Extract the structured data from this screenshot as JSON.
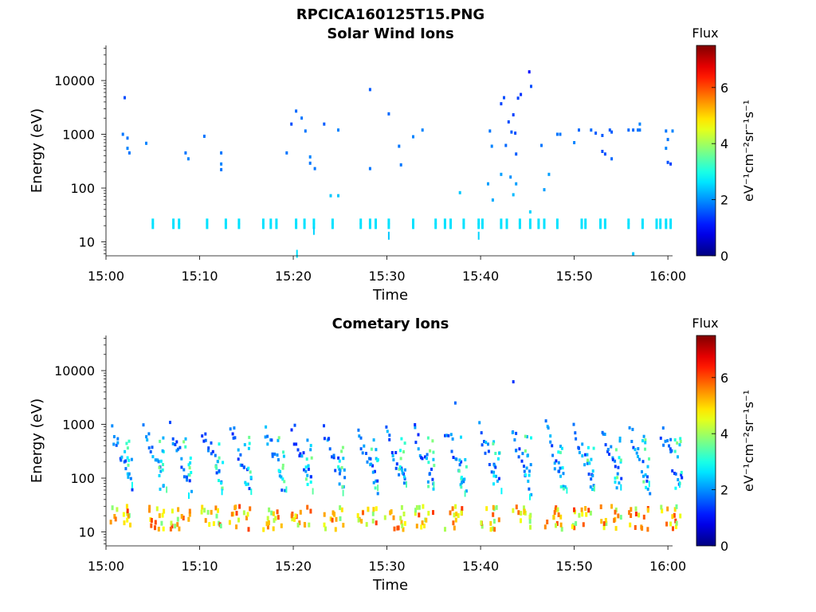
{
  "figure_title": "RPCICA160125T15.PNG",
  "chart_data": [
    {
      "type": "heatmap",
      "title": "Solar Wind Ions",
      "xlabel": "Time",
      "ylabel": "Energy (eV)",
      "x_ticks": [
        "15:00",
        "15:10",
        "15:20",
        "15:30",
        "15:40",
        "15:50",
        "16:00"
      ],
      "x_range_minutes": [
        0,
        60.5
      ],
      "y_ticks": [
        "10",
        "100",
        "1000",
        "10000"
      ],
      "y_tick_values": [
        10,
        100,
        1000,
        10000
      ],
      "y_range": [
        5.5,
        45000
      ],
      "y_scale": "log",
      "colorbar": {
        "title": "Flux",
        "label": "eV⁻¹cm⁻²sr⁻¹s⁻¹",
        "ticks": [
          "0",
          "2",
          "4",
          "6"
        ],
        "range": [
          0,
          7.5
        ],
        "colormap": "jet"
      },
      "points": [
        [
          1.8,
          1000,
          1.8
        ],
        [
          2.0,
          4800,
          1.5
        ],
        [
          2.3,
          850,
          1.8
        ],
        [
          2.3,
          550,
          1.9
        ],
        [
          2.5,
          450,
          1.8
        ],
        [
          4.3,
          680,
          1.9
        ],
        [
          8.5,
          450,
          1.8
        ],
        [
          8.8,
          350,
          1.9
        ],
        [
          10.5,
          920,
          1.8
        ],
        [
          12.3,
          450,
          1.8
        ],
        [
          12.3,
          280,
          1.9
        ],
        [
          12.3,
          220,
          1.8
        ],
        [
          19.3,
          450,
          1.8
        ],
        [
          19.8,
          1550,
          1.5
        ],
        [
          20.3,
          2700,
          1.7
        ],
        [
          20.9,
          2000,
          1.8
        ],
        [
          21.3,
          1150,
          1.8
        ],
        [
          21.8,
          380,
          1.9
        ],
        [
          21.8,
          290,
          1.8
        ],
        [
          22.3,
          230,
          1.8
        ],
        [
          23.3,
          1550,
          1.6
        ],
        [
          24.8,
          1200,
          1.9
        ],
        [
          24.0,
          72,
          2.4
        ],
        [
          24.8,
          72,
          2.4
        ],
        [
          28.2,
          6800,
          1.6
        ],
        [
          28.2,
          230,
          1.8
        ],
        [
          30.2,
          2400,
          1.7
        ],
        [
          31.3,
          600,
          1.8
        ],
        [
          31.5,
          270,
          1.8
        ],
        [
          32.8,
          900,
          1.9
        ],
        [
          33.8,
          1200,
          1.9
        ],
        [
          37.8,
          82,
          2.4
        ],
        [
          40.8,
          120,
          2.1
        ],
        [
          41.0,
          1150,
          1.8
        ],
        [
          41.2,
          600,
          1.9
        ],
        [
          41.3,
          60,
          2.2
        ],
        [
          42.2,
          180,
          2.1
        ],
        [
          42.2,
          3700,
          1.4
        ],
        [
          42.5,
          4800,
          1.5
        ],
        [
          42.7,
          620,
          1.7
        ],
        [
          43.0,
          1700,
          1.5
        ],
        [
          43.2,
          160,
          2.0
        ],
        [
          43.3,
          1100,
          1.6
        ],
        [
          43.5,
          2300,
          1.4
        ],
        [
          43.7,
          1050,
          1.5
        ],
        [
          43.8,
          430,
          1.6
        ],
        [
          43.8,
          120,
          2.1
        ],
        [
          44.0,
          4700,
          1.4
        ],
        [
          44.3,
          5500,
          1.3
        ],
        [
          45.2,
          14500,
          1.0
        ],
        [
          45.4,
          7800,
          1.5
        ],
        [
          43.5,
          75,
          2.3
        ],
        [
          45.3,
          36,
          2.5
        ],
        [
          46.5,
          620,
          1.8
        ],
        [
          46.8,
          93,
          2.1
        ],
        [
          47.3,
          180,
          2.1
        ],
        [
          48.2,
          1000,
          1.8
        ],
        [
          48.5,
          1000,
          1.8
        ],
        [
          50.0,
          700,
          1.9
        ],
        [
          50.5,
          1200,
          1.7
        ],
        [
          51.8,
          1200,
          1.7
        ],
        [
          52.3,
          1050,
          1.6
        ],
        [
          53.0,
          950,
          1.6
        ],
        [
          53.0,
          480,
          1.5
        ],
        [
          53.3,
          430,
          1.5
        ],
        [
          53.8,
          1200,
          1.6
        ],
        [
          54.0,
          1100,
          1.6
        ],
        [
          54.0,
          350,
          1.7
        ],
        [
          55.8,
          1200,
          1.7
        ],
        [
          56.3,
          1200,
          1.7
        ],
        [
          56.8,
          1200,
          1.8
        ],
        [
          57.0,
          1200,
          1.8
        ],
        [
          57.0,
          1550,
          1.9
        ],
        [
          59.8,
          1150,
          1.8
        ],
        [
          59.8,
          550,
          1.9
        ],
        [
          60.0,
          800,
          1.8
        ],
        [
          60.0,
          300,
          1.5
        ],
        [
          60.3,
          280,
          1.4
        ],
        [
          60.5,
          1150,
          1.9
        ],
        [
          56.3,
          6,
          2.4
        ]
      ],
      "low_energy_times": [
        5,
        7.2,
        7.8,
        10.8,
        12.8,
        14.2,
        16.8,
        17.6,
        18.2,
        20.3,
        21.2,
        22.2,
        24.2,
        27.2,
        28.2,
        28.8,
        30.2,
        32.8,
        35.2,
        36.2,
        36.8,
        38.2,
        39.8,
        40.2,
        42.2,
        42.8,
        44.2,
        45.3,
        46.2,
        46.8,
        48.2,
        50.8,
        51.2,
        52.8,
        53.3,
        55.8,
        57.3,
        58.8,
        59.2,
        59.8,
        60.3
      ],
      "low_energy_drops": [
        [
          20.4,
          6,
          2.6
        ],
        [
          22.2,
          16,
          2.5
        ],
        [
          30.2,
          13,
          2.4
        ],
        [
          39.8,
          13,
          2.5
        ]
      ]
    },
    {
      "type": "heatmap",
      "title": "Cometary Ions",
      "xlabel": "Time",
      "ylabel": "Energy (eV)",
      "x_ticks": [
        "15:00",
        "15:10",
        "15:20",
        "15:30",
        "15:40",
        "15:50",
        "16:00"
      ],
      "x_range_minutes": [
        0,
        60.5
      ],
      "y_ticks": [
        "10",
        "100",
        "1000",
        "10000"
      ],
      "y_tick_values": [
        10,
        100,
        1000,
        10000
      ],
      "y_range": [
        5.5,
        45000
      ],
      "y_scale": "log",
      "colorbar": {
        "title": "Flux",
        "label": "eV⁻¹cm⁻²sr⁻¹s⁻¹",
        "ticks": [
          "0",
          "2",
          "4",
          "6"
        ],
        "range": [
          0,
          7.5
        ],
        "colormap": "jet"
      },
      "sweep_starts": [
        0.5,
        4,
        6.8,
        10.2,
        13.2,
        16.8,
        19.8,
        23.2,
        26.8,
        29.8,
        32.8,
        36.2,
        39.8,
        43.2,
        46.8,
        49.8,
        52.8,
        55.8,
        59.2
      ],
      "low_band_energy_range": [
        11,
        30
      ],
      "isolated_points": [
        [
          37.3,
          2500,
          1.7
        ],
        [
          43.5,
          6200,
          1.3
        ],
        [
          43.8,
          330,
          1.8
        ],
        [
          60.3,
          520,
          1.8
        ]
      ]
    }
  ]
}
